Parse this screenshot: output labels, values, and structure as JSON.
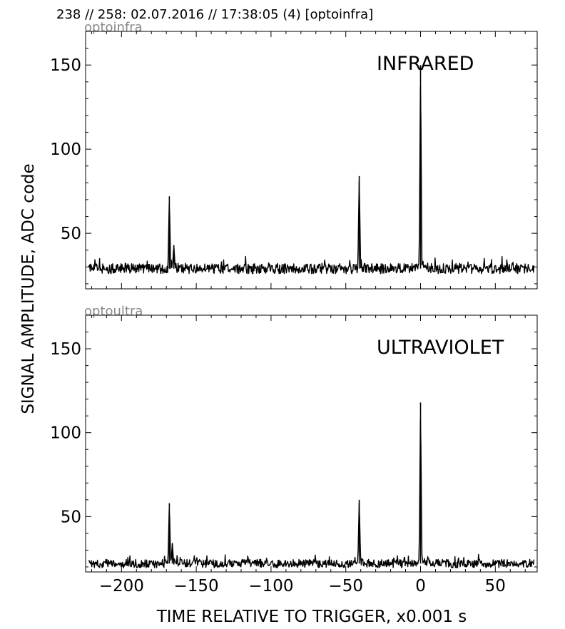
{
  "header": {
    "text": "238 // 258:   02.07.2016 // 17:38:05 (4)  [optoinfra]"
  },
  "ylabel": "SIGNAL AMPLITUDE,  ADC code",
  "xlabel": "TIME RELATIVE TO TRIGGER,   x0.001 s",
  "colors": {
    "trace": "#000000",
    "panel_tag": "#888888",
    "frame": "#000000"
  },
  "chart_data": [
    {
      "type": "line",
      "panel_tag": "optoinfra",
      "annotation": "INFRARED",
      "xlim": [
        -224,
        78
      ],
      "ylim": [
        17,
        170
      ],
      "x_ticks": [
        -200,
        -150,
        -100,
        -50,
        0,
        50
      ],
      "y_ticks": [
        50,
        100,
        150
      ],
      "y_tick_labels": [
        "50",
        "100",
        "150"
      ],
      "grid": false,
      "baseline": 29,
      "noise": 3,
      "x_start": -222,
      "x_end": 76,
      "peaks": [
        {
          "x": -168,
          "y": 72
        },
        {
          "x": -165,
          "y": 43
        },
        {
          "x": -41,
          "y": 84
        },
        {
          "x": 0,
          "y": 150
        }
      ]
    },
    {
      "type": "line",
      "panel_tag": "optoultra",
      "annotation": "ULTRAVIOLET",
      "xlim": [
        -224,
        78
      ],
      "ylim": [
        17,
        170
      ],
      "x_ticks": [
        -200,
        -150,
        -100,
        -50,
        0,
        50
      ],
      "x_tick_labels": [
        "−200",
        "−150",
        "−100",
        "−50",
        "0",
        "50"
      ],
      "y_ticks": [
        50,
        100,
        150
      ],
      "y_tick_labels": [
        "50",
        "100",
        "150"
      ],
      "grid": false,
      "baseline": 22,
      "noise": 2.5,
      "x_start": -222,
      "x_end": 76,
      "peaks": [
        {
          "x": -168,
          "y": 58
        },
        {
          "x": -166,
          "y": 34
        },
        {
          "x": -41,
          "y": 60
        },
        {
          "x": 0,
          "y": 118
        }
      ]
    }
  ]
}
